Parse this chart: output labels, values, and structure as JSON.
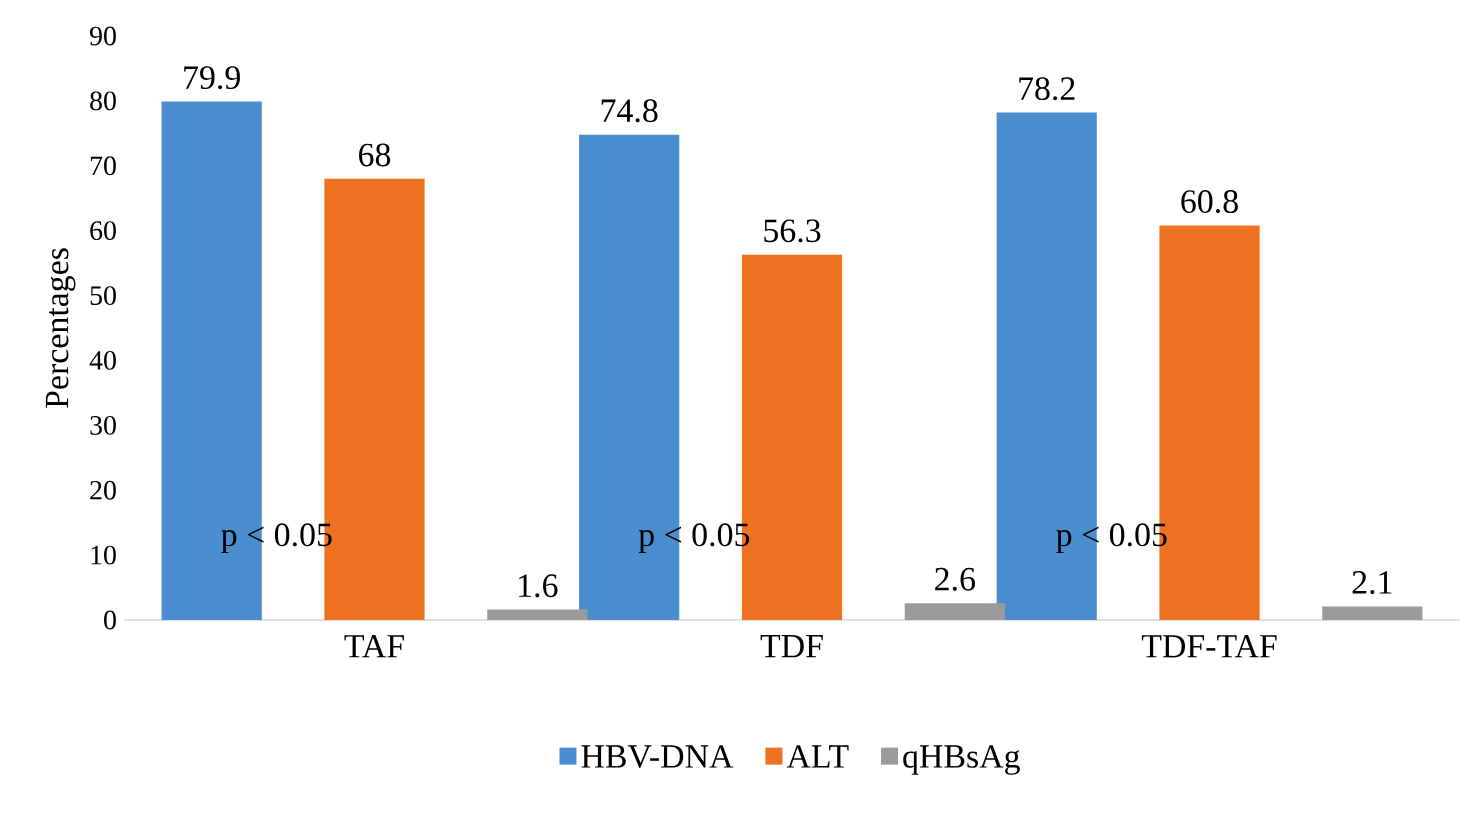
{
  "chart_data": {
    "type": "bar",
    "ylabel": "Percentages",
    "categories": [
      "TAF",
      "TDF",
      "TDF-TAF"
    ],
    "series": [
      {
        "name": "HBV-DNA",
        "color": "#4a8ed0",
        "values": [
          79.9,
          74.8,
          78.2
        ]
      },
      {
        "name": "ALT",
        "color": "#ee7222",
        "values": [
          68,
          56.3,
          60.8
        ]
      },
      {
        "name": "qHBsAg",
        "color": "#9b9b9b",
        "values": [
          1.6,
          2.6,
          2.1
        ]
      }
    ],
    "ylim": [
      0,
      90
    ],
    "yticks": [
      0,
      10,
      20,
      30,
      40,
      50,
      60,
      70,
      80,
      90
    ],
    "data_labels": true,
    "legend": "bottom",
    "grid": false,
    "annotations": [
      "p < 0.05",
      "p < 0.05",
      "p < 0.05"
    ]
  }
}
